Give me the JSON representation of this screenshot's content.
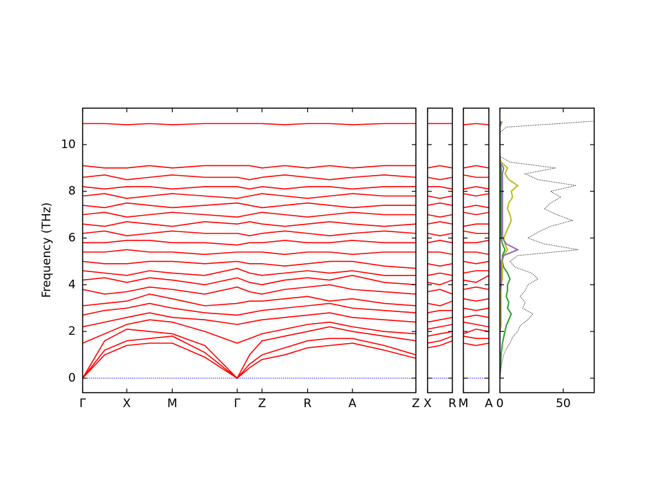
{
  "chart_data": [
    {
      "type": "line",
      "ylabel": "Frequency (THz)",
      "color": "#ff0000",
      "ylim": [
        -0.62,
        11.56
      ],
      "yticks": [
        0,
        2,
        4,
        6,
        8,
        10
      ],
      "xlim": [
        0,
        4.83
      ],
      "xticks": [
        {
          "value": 0,
          "label": "Γ"
        },
        {
          "value": 0.64,
          "label": "X"
        },
        {
          "value": 1.3,
          "label": "M"
        },
        {
          "value": 2.24,
          "label": "Γ"
        },
        {
          "value": 2.6,
          "label": "Z"
        },
        {
          "value": 3.26,
          "label": "R"
        },
        {
          "value": 3.91,
          "label": "A"
        },
        {
          "value": 4.83,
          "label": "Z"
        }
      ],
      "hlines": [
        {
          "value": 0,
          "color": "#0000ff"
        }
      ],
      "x": [
        0,
        0.32,
        0.64,
        0.97,
        1.3,
        1.77,
        2.24,
        2.42,
        2.6,
        2.93,
        3.26,
        3.58,
        3.91,
        4.37,
        4.83
      ],
      "series": [
        {
          "values": [
            0,
            1.0,
            1.4,
            1.5,
            1.5,
            0.9,
            0,
            0.45,
            0.8,
            1.0,
            1.3,
            1.4,
            1.5,
            1.2,
            0.85
          ]
        },
        {
          "values": [
            0,
            1.2,
            1.6,
            1.7,
            1.8,
            1.1,
            0,
            0.6,
            1.0,
            1.3,
            1.6,
            1.7,
            1.7,
            1.4,
            1.0
          ]
        },
        {
          "values": [
            0,
            1.6,
            2.1,
            2.0,
            1.9,
            1.4,
            0,
            1.0,
            1.6,
            1.8,
            2.0,
            2.2,
            2.0,
            1.8,
            1.6
          ]
        },
        {
          "values": [
            1.5,
            1.9,
            2.3,
            2.5,
            2.4,
            2.0,
            1.5,
            1.7,
            1.9,
            2.1,
            2.3,
            2.4,
            2.2,
            2.0,
            1.9
          ]
        },
        {
          "values": [
            2.2,
            2.4,
            2.6,
            2.8,
            2.6,
            2.5,
            2.3,
            2.4,
            2.5,
            2.6,
            2.7,
            2.8,
            2.6,
            2.5,
            2.4
          ]
        },
        {
          "values": [
            2.7,
            2.9,
            3.0,
            3.2,
            3.0,
            2.8,
            2.7,
            2.8,
            2.9,
            3.0,
            3.1,
            3.2,
            3.0,
            2.9,
            2.8
          ]
        },
        {
          "values": [
            3.1,
            3.2,
            3.3,
            3.6,
            3.4,
            3.1,
            3.2,
            3.3,
            3.3,
            3.4,
            3.5,
            3.3,
            3.4,
            3.2,
            3.1
          ]
        },
        {
          "values": [
            3.8,
            3.6,
            3.7,
            3.9,
            3.8,
            3.6,
            3.9,
            3.7,
            3.6,
            3.8,
            3.9,
            4.0,
            3.8,
            3.7,
            3.6
          ]
        },
        {
          "values": [
            4.2,
            4.3,
            4.1,
            4.3,
            4.2,
            4.0,
            4.3,
            4.1,
            4.0,
            4.2,
            4.3,
            4.2,
            4.4,
            4.1,
            4.0
          ]
        },
        {
          "values": [
            4.6,
            4.5,
            4.4,
            4.6,
            4.5,
            4.4,
            4.7,
            4.5,
            4.4,
            4.5,
            4.6,
            4.5,
            4.6,
            4.4,
            4.4
          ]
        },
        {
          "values": [
            5.0,
            4.9,
            4.9,
            5.0,
            5.0,
            4.9,
            5.0,
            4.9,
            4.9,
            4.8,
            4.9,
            5.0,
            5.0,
            4.8,
            4.7
          ]
        },
        {
          "values": [
            5.4,
            5.4,
            5.5,
            5.4,
            5.4,
            5.3,
            5.4,
            5.4,
            5.4,
            5.3,
            5.4,
            5.4,
            5.3,
            5.4,
            5.4
          ]
        },
        {
          "values": [
            5.8,
            5.8,
            5.9,
            5.9,
            5.8,
            5.8,
            5.7,
            5.8,
            5.8,
            5.9,
            5.8,
            5.8,
            5.9,
            5.8,
            5.8
          ]
        },
        {
          "values": [
            6.2,
            6.3,
            6.1,
            6.2,
            6.3,
            6.2,
            6.2,
            6.1,
            6.2,
            6.3,
            6.2,
            6.1,
            6.2,
            6.3,
            6.2
          ]
        },
        {
          "values": [
            6.6,
            6.5,
            6.7,
            6.6,
            6.5,
            6.7,
            6.6,
            6.7,
            6.6,
            6.5,
            6.6,
            6.7,
            6.6,
            6.5,
            6.6
          ]
        },
        {
          "values": [
            7.0,
            7.1,
            6.9,
            7.0,
            7.1,
            7.0,
            6.9,
            7.0,
            7.1,
            7.0,
            6.9,
            7.0,
            7.1,
            7.0,
            7.0
          ]
        },
        {
          "values": [
            7.4,
            7.3,
            7.5,
            7.4,
            7.3,
            7.4,
            7.5,
            7.4,
            7.3,
            7.4,
            7.5,
            7.4,
            7.3,
            7.4,
            7.4
          ]
        },
        {
          "values": [
            7.8,
            7.9,
            7.7,
            7.8,
            7.9,
            7.8,
            7.7,
            7.8,
            7.9,
            7.8,
            7.7,
            7.8,
            7.9,
            7.8,
            7.8
          ]
        },
        {
          "values": [
            8.2,
            8.1,
            8.2,
            8.2,
            8.1,
            8.2,
            8.2,
            8.1,
            8.2,
            8.1,
            8.2,
            8.2,
            8.1,
            8.2,
            8.2
          ]
        },
        {
          "values": [
            8.6,
            8.7,
            8.5,
            8.6,
            8.7,
            8.6,
            8.6,
            8.5,
            8.6,
            8.7,
            8.6,
            8.5,
            8.6,
            8.7,
            8.6
          ]
        },
        {
          "values": [
            9.1,
            9.0,
            9.0,
            9.1,
            9.0,
            9.1,
            9.1,
            9.1,
            9.0,
            9.1,
            9.0,
            9.1,
            9.0,
            9.1,
            9.1
          ]
        },
        {
          "values": [
            10.9,
            10.9,
            10.85,
            10.9,
            10.85,
            10.9,
            10.9,
            10.9,
            10.9,
            10.85,
            10.9,
            10.9,
            10.85,
            10.9,
            10.9
          ]
        }
      ]
    },
    {
      "type": "line",
      "color": "#ff0000",
      "xlim": [
        0,
        1
      ],
      "xticks": [
        {
          "value": 0,
          "label": "X"
        },
        {
          "value": 1,
          "label": "R"
        }
      ],
      "hlines": [
        {
          "value": 0,
          "color": "#0000ff"
        }
      ],
      "x": [
        0,
        0.5,
        1
      ],
      "series": [
        {
          "values": [
            1.3,
            1.4,
            1.6
          ]
        },
        {
          "values": [
            1.5,
            1.6,
            1.8
          ]
        },
        {
          "values": [
            1.8,
            1.9,
            2.0
          ]
        },
        {
          "values": [
            2.1,
            2.2,
            2.3
          ]
        },
        {
          "values": [
            2.4,
            2.5,
            2.6
          ]
        },
        {
          "values": [
            2.8,
            2.9,
            2.9
          ]
        },
        {
          "values": [
            3.2,
            3.1,
            3.3
          ]
        },
        {
          "values": [
            3.7,
            3.8,
            3.6
          ]
        },
        {
          "values": [
            4.1,
            4.0,
            4.2
          ]
        },
        {
          "values": [
            4.4,
            4.5,
            4.4
          ]
        },
        {
          "values": [
            4.9,
            4.8,
            4.9
          ]
        },
        {
          "values": [
            5.4,
            5.4,
            5.3
          ]
        },
        {
          "values": [
            5.8,
            5.9,
            5.8
          ]
        },
        {
          "values": [
            6.2,
            6.1,
            6.2
          ]
        },
        {
          "values": [
            6.6,
            6.7,
            6.6
          ]
        },
        {
          "values": [
            7.0,
            6.9,
            7.0
          ]
        },
        {
          "values": [
            7.4,
            7.5,
            7.4
          ]
        },
        {
          "values": [
            7.8,
            7.7,
            7.8
          ]
        },
        {
          "values": [
            8.2,
            8.2,
            8.1
          ]
        },
        {
          "values": [
            8.6,
            8.5,
            8.6
          ]
        },
        {
          "values": [
            9.0,
            9.1,
            9.0
          ]
        },
        {
          "values": [
            10.9,
            10.9,
            10.9
          ]
        }
      ]
    },
    {
      "type": "line",
      "color": "#ff0000",
      "xlim": [
        0,
        1
      ],
      "xticks": [
        {
          "value": 0,
          "label": "M"
        },
        {
          "value": 1,
          "label": "A"
        }
      ],
      "hlines": [
        {
          "value": 0,
          "color": "#0000ff"
        }
      ],
      "x": [
        0,
        0.5,
        1
      ],
      "series": [
        {
          "values": [
            1.5,
            1.4,
            1.5
          ]
        },
        {
          "values": [
            1.8,
            1.7,
            1.7
          ]
        },
        {
          "values": [
            1.9,
            2.1,
            2.0
          ]
        },
        {
          "values": [
            2.4,
            2.3,
            2.2
          ]
        },
        {
          "values": [
            2.6,
            2.7,
            2.6
          ]
        },
        {
          "values": [
            3.0,
            2.9,
            3.0
          ]
        },
        {
          "values": [
            3.4,
            3.3,
            3.4
          ]
        },
        {
          "values": [
            3.8,
            3.9,
            3.8
          ]
        },
        {
          "values": [
            4.2,
            4.1,
            4.4
          ]
        },
        {
          "values": [
            4.5,
            4.6,
            4.6
          ]
        },
        {
          "values": [
            5.0,
            4.9,
            5.0
          ]
        },
        {
          "values": [
            5.4,
            5.4,
            5.3
          ]
        },
        {
          "values": [
            5.8,
            5.8,
            5.9
          ]
        },
        {
          "values": [
            6.3,
            6.2,
            6.2
          ]
        },
        {
          "values": [
            6.5,
            6.6,
            6.6
          ]
        },
        {
          "values": [
            7.1,
            7.0,
            7.1
          ]
        },
        {
          "values": [
            7.3,
            7.4,
            7.3
          ]
        },
        {
          "values": [
            7.9,
            7.8,
            7.9
          ]
        },
        {
          "values": [
            8.1,
            8.2,
            8.1
          ]
        },
        {
          "values": [
            8.7,
            8.6,
            8.6
          ]
        },
        {
          "values": [
            9.0,
            9.1,
            9.0
          ]
        },
        {
          "values": [
            10.85,
            10.9,
            10.85
          ]
        }
      ]
    },
    {
      "type": "dos",
      "orientation": "horizontal",
      "xlim": [
        0,
        74.4
      ],
      "xticks": [
        0,
        50
      ],
      "y": [
        0,
        0.25,
        0.5,
        0.75,
        1,
        1.25,
        1.5,
        1.75,
        2,
        2.25,
        2.5,
        2.75,
        3,
        3.25,
        3.5,
        3.75,
        4,
        4.25,
        4.5,
        4.75,
        5,
        5.25,
        5.5,
        5.75,
        6,
        6.25,
        6.5,
        6.75,
        7,
        7.25,
        7.5,
        7.75,
        8,
        8.25,
        8.5,
        8.75,
        9,
        9.25,
        9.5,
        9.75,
        10,
        10.25,
        10.5,
        10.75,
        11
      ],
      "series": [
        {
          "color": "#2ca02c",
          "style": "solid",
          "values": [
            0,
            0.2,
            0.5,
            0.8,
            1,
            1.5,
            2,
            3,
            4,
            5,
            7,
            9,
            6,
            7,
            5,
            6,
            6,
            8,
            6,
            3,
            2,
            2,
            4,
            2,
            1,
            1,
            1,
            1,
            1,
            1,
            1,
            1,
            1,
            1,
            1,
            1,
            1,
            0,
            0,
            0,
            0,
            0,
            0,
            0,
            1
          ]
        },
        {
          "color": "#bcbd22",
          "style": "solid",
          "values": [
            0,
            0,
            0,
            0,
            0,
            0,
            0,
            0,
            0,
            1,
            1,
            1,
            1,
            1,
            1,
            1,
            1,
            2,
            2,
            2,
            2,
            3,
            6,
            4,
            3,
            5,
            7,
            9,
            8,
            6,
            7,
            10,
            9,
            14,
            7,
            4,
            6,
            1,
            0,
            0,
            0,
            0,
            0,
            0,
            2
          ]
        },
        {
          "color": "#9467bd",
          "style": "solid",
          "values": [
            0,
            0,
            0,
            0,
            0,
            0,
            0,
            0,
            0,
            0,
            0,
            0,
            0,
            0,
            0,
            0,
            1,
            1,
            1,
            1,
            1,
            3,
            14,
            5,
            2,
            2,
            2,
            2,
            2,
            2,
            2,
            2,
            2,
            2,
            2,
            2,
            3,
            0,
            0,
            0,
            0,
            0,
            0,
            0,
            1
          ]
        },
        {
          "color": "#000000",
          "style": "dotted",
          "values": [
            0,
            0.5,
            1,
            2,
            3,
            5,
            8,
            10,
            14,
            16,
            22,
            26,
            18,
            20,
            16,
            20,
            22,
            30,
            25,
            12,
            8,
            14,
            62,
            35,
            22,
            30,
            40,
            57,
            45,
            35,
            40,
            48,
            40,
            60,
            30,
            20,
            44,
            8,
            0,
            0,
            0,
            0,
            0,
            5,
            74
          ]
        }
      ]
    }
  ]
}
